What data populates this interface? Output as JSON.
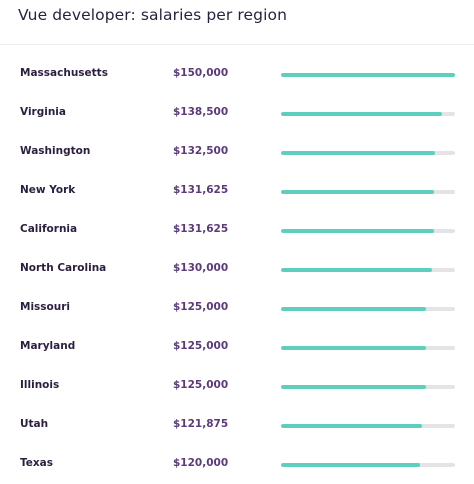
{
  "chart_data": {
    "type": "bar",
    "title": "Vue developer: salaries per region",
    "categories": [
      "Massachusetts",
      "Virginia",
      "Washington",
      "New York",
      "California",
      "North Carolina",
      "Missouri",
      "Maryland",
      "Illinois",
      "Utah",
      "Texas"
    ],
    "value_labels": [
      "$150,000",
      "$138,500",
      "$132,500",
      "$131,625",
      "$131,625",
      "$130,000",
      "$125,000",
      "$125,000",
      "$125,000",
      "$121,875",
      "$120,000"
    ],
    "values": [
      150000,
      138500,
      132500,
      131625,
      131625,
      130000,
      125000,
      125000,
      125000,
      121875,
      120000
    ],
    "xlim": [
      0,
      150000
    ],
    "orientation": "horizontal",
    "bar_color": "#5ecfbd",
    "track_color": "#e4e4e6",
    "label_color": "#2a1f3d",
    "value_color": "#5b3a7a"
  }
}
